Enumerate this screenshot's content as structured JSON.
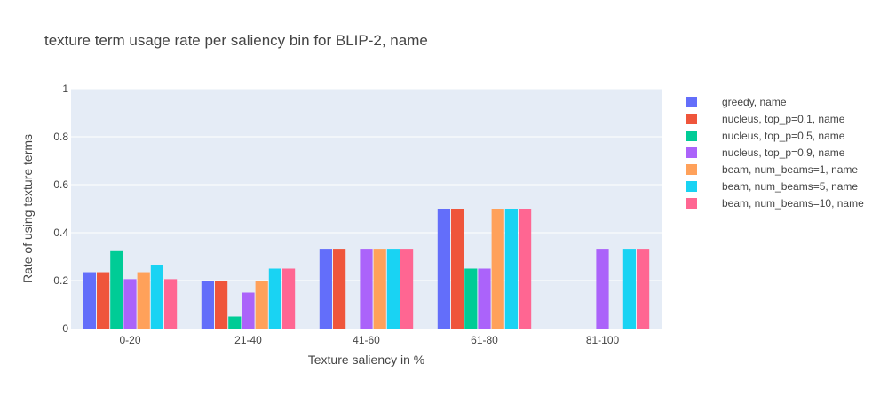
{
  "chart_data": {
    "type": "bar",
    "title": "texture term usage rate per saliency bin for BLIP-2, name",
    "xlabel": "Texture saliency in %",
    "ylabel": "Rate of using texture terms",
    "categories": [
      "0-20",
      "21-40",
      "41-60",
      "61-80",
      "81-100"
    ],
    "ylim": [
      0,
      1
    ],
    "yticks": [
      0,
      0.2,
      0.4,
      0.6,
      0.8,
      1
    ],
    "ytick_labels": [
      "0",
      "0.2",
      "0.4",
      "0.6",
      "0.8",
      "1"
    ],
    "grid": true,
    "legend_position": "right",
    "series": [
      {
        "name": "greedy, name",
        "color": "#636efa",
        "values": [
          0.235,
          0.2,
          0.333,
          0.5,
          0
        ]
      },
      {
        "name": "nucleus, top_p=0.1, name",
        "color": "#EF553B",
        "values": [
          0.235,
          0.2,
          0.333,
          0.5,
          0
        ]
      },
      {
        "name": "nucleus, top_p=0.5, name",
        "color": "#00cc96",
        "values": [
          0.323,
          0.05,
          0,
          0.25,
          0
        ]
      },
      {
        "name": "nucleus, top_p=0.9, name",
        "color": "#ab63fa",
        "values": [
          0.206,
          0.15,
          0.333,
          0.25,
          0.333
        ]
      },
      {
        "name": "beam, num_beams=1, name",
        "color": "#FFA15A",
        "values": [
          0.235,
          0.2,
          0.333,
          0.5,
          0
        ]
      },
      {
        "name": "beam, num_beams=5, name",
        "color": "#19d3f3",
        "values": [
          0.265,
          0.25,
          0.333,
          0.5,
          0.333
        ]
      },
      {
        "name": "beam, num_beams=10, name",
        "color": "#FF6692",
        "values": [
          0.206,
          0.25,
          0.333,
          0.5,
          0.333
        ]
      }
    ]
  }
}
